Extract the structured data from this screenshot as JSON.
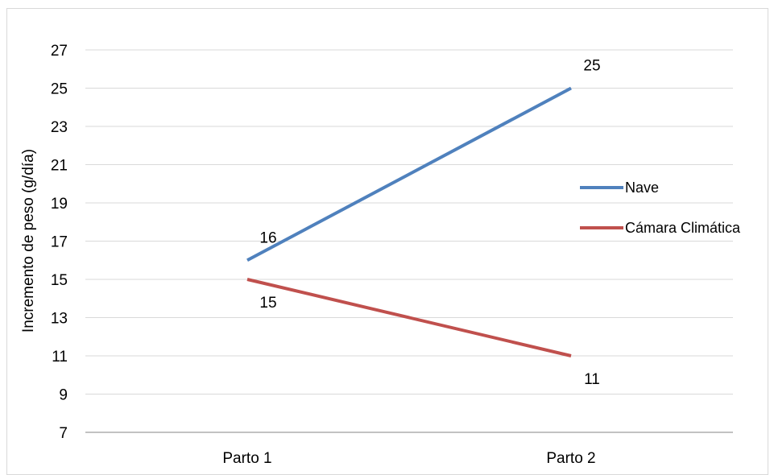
{
  "chart_data": {
    "type": "line",
    "title": "",
    "xlabel": "",
    "ylabel": "Incremento de peso (g/día)",
    "categories": [
      "Parto 1",
      "Parto 2"
    ],
    "ylim": [
      7,
      27
    ],
    "yticks": [
      7,
      9,
      11,
      13,
      15,
      17,
      19,
      21,
      23,
      25,
      27
    ],
    "grid": true,
    "legend_position": "right",
    "series": [
      {
        "name": "Nave",
        "values": [
          16,
          25
        ],
        "color": "#4f81bd"
      },
      {
        "name": "Cámara Climática",
        "values": [
          15,
          11
        ],
        "color": "#c0504d"
      }
    ]
  }
}
